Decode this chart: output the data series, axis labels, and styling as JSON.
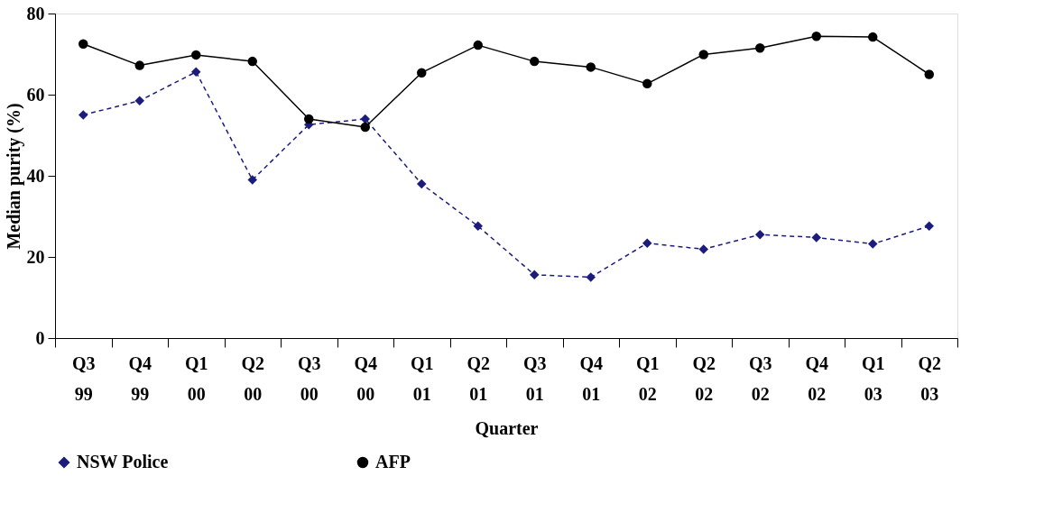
{
  "chart_data": {
    "type": "line",
    "xlabel": "Quarter",
    "ylabel": "Median purity (%)",
    "categories": [
      "Q3 99",
      "Q4 99",
      "Q1 00",
      "Q2 00",
      "Q3 00",
      "Q4 00",
      "Q1 01",
      "Q2 01",
      "Q3 01",
      "Q4 01",
      "Q1 02",
      "Q2 02",
      "Q3 02",
      "Q4 02",
      "Q1 03",
      "Q2 03"
    ],
    "series": [
      {
        "name": "NSW  Police",
        "color": "#1c1c7c",
        "marker": "diamond",
        "line_style": "dashed",
        "values": [
          55,
          58.5,
          65.6,
          39,
          52.6,
          54,
          38,
          27.6,
          15.6,
          15,
          23.4,
          21.9,
          25.5,
          24.8,
          23.2,
          27.6
        ]
      },
      {
        "name": "AFP",
        "color": "#000000",
        "marker": "circle",
        "line_style": "solid",
        "values": [
          72.5,
          67.2,
          69.8,
          68.2,
          54,
          52,
          65.4,
          72.2,
          68.2,
          66.8,
          62.7,
          69.9,
          71.5,
          74.4,
          74.2,
          65
        ]
      }
    ],
    "ylim": [
      0,
      80
    ],
    "yticks": [
      0,
      20,
      40,
      60,
      80
    ],
    "grid": false,
    "legend": "bottom"
  }
}
